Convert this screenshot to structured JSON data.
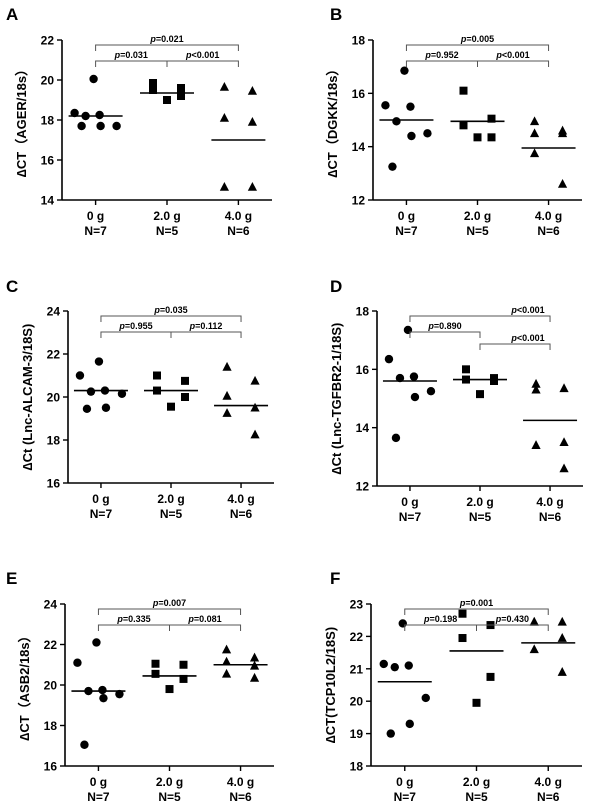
{
  "figure": {
    "description_panels": 6
  },
  "chart_data": [
    {
      "panel": "A",
      "type": "scatter",
      "ylabel": "∆CT（AGER/18s）",
      "ylim": [
        14,
        22
      ],
      "yticks": [
        14,
        16,
        18,
        20,
        22
      ],
      "ytick_labels": [
        "14",
        "16",
        "18",
        "20",
        "22"
      ],
      "groups": [
        {
          "dose": "0 g",
          "n": "N=7",
          "marker": "circle",
          "mean": 18.2,
          "values": [
            20.05,
            18.35,
            18.25,
            18.2,
            17.7,
            17.7,
            17.7
          ]
        },
        {
          "dose": "2.0 g",
          "n": "N=5",
          "marker": "square",
          "mean": 19.35,
          "values": [
            19.85,
            19.6,
            19.5,
            19.2,
            19.0
          ]
        },
        {
          "dose": "4.0 g",
          "n": "N=6",
          "marker": "triangle",
          "mean": 17.0,
          "values": [
            19.65,
            19.45,
            18.1,
            17.9,
            14.65,
            14.65
          ]
        }
      ],
      "comparisons": [
        {
          "from": 0,
          "to": 2,
          "label": "p=0.021",
          "level": 2
        },
        {
          "from": 0,
          "to": 1,
          "label": "p=0.031",
          "level": 1
        },
        {
          "from": 1,
          "to": 2,
          "label": "p<0.001",
          "level": 1
        }
      ]
    },
    {
      "panel": "B",
      "type": "scatter",
      "ylabel": "∆CT（DGKK/18s）",
      "ylim": [
        12,
        18
      ],
      "yticks": [
        12,
        14,
        16,
        18
      ],
      "ytick_labels": [
        "12",
        "14",
        "16",
        "18"
      ],
      "groups": [
        {
          "dose": "0 g",
          "n": "N=7",
          "marker": "circle",
          "mean": 15.0,
          "values": [
            16.85,
            15.55,
            15.5,
            14.95,
            14.5,
            14.4,
            13.25
          ]
        },
        {
          "dose": "2.0 g",
          "n": "N=5",
          "marker": "square",
          "mean": 14.95,
          "values": [
            16.1,
            15.05,
            14.8,
            14.35,
            14.35
          ]
        },
        {
          "dose": "4.0 g",
          "n": "N=6",
          "marker": "triangle",
          "mean": 13.95,
          "values": [
            14.95,
            14.6,
            14.5,
            14.5,
            13.75,
            12.6
          ]
        }
      ],
      "comparisons": [
        {
          "from": 0,
          "to": 2,
          "label": "p=0.005",
          "level": 2
        },
        {
          "from": 0,
          "to": 1,
          "label": "p=0.952",
          "level": 1
        },
        {
          "from": 1,
          "to": 2,
          "label": "p<0.001",
          "level": 1
        }
      ]
    },
    {
      "panel": "C",
      "type": "scatter",
      "ylabel": "∆Ct (Lnc-ALCAM-3/18S)",
      "ylim": [
        16,
        24
      ],
      "yticks": [
        16,
        18,
        20,
        22,
        24
      ],
      "ytick_labels": [
        "16",
        "18",
        "20",
        "22",
        "24"
      ],
      "groups": [
        {
          "dose": "0 g",
          "n": "N=7",
          "marker": "circle",
          "mean": 20.3,
          "values": [
            21.65,
            21.0,
            20.3,
            20.25,
            20.15,
            19.5,
            19.45
          ]
        },
        {
          "dose": "2.0 g",
          "n": "N=5",
          "marker": "square",
          "mean": 20.3,
          "values": [
            21.0,
            20.75,
            20.3,
            20.0,
            19.55
          ]
        },
        {
          "dose": "4.0 g",
          "n": "N=6",
          "marker": "triangle",
          "mean": 19.6,
          "values": [
            21.4,
            20.75,
            20.05,
            19.5,
            19.25,
            18.25
          ]
        }
      ],
      "comparisons": [
        {
          "from": 0,
          "to": 2,
          "label": "p=0.035",
          "level": 2
        },
        {
          "from": 0,
          "to": 1,
          "label": "p=0.955",
          "level": 1
        },
        {
          "from": 1,
          "to": 2,
          "label": "p=0.112",
          "level": 1
        }
      ]
    },
    {
      "panel": "D",
      "type": "scatter",
      "ylabel": "∆Ct (Lnc-TGFBR2-1/18S)",
      "ylim": [
        12,
        18
      ],
      "yticks": [
        12,
        14,
        16,
        18
      ],
      "ytick_labels": [
        "12",
        "14",
        "16",
        "18"
      ],
      "groups": [
        {
          "dose": "0 g",
          "n": "N=7",
          "marker": "circle",
          "mean": 15.6,
          "values": [
            17.35,
            16.35,
            15.75,
            15.7,
            15.25,
            15.05,
            13.65
          ]
        },
        {
          "dose": "2.0 g",
          "n": "N=5",
          "marker": "square",
          "mean": 15.65,
          "values": [
            16.0,
            15.7,
            15.65,
            15.6,
            15.15
          ]
        },
        {
          "dose": "4.0 g",
          "n": "N=6",
          "marker": "triangle",
          "mean": 14.25,
          "values": [
            15.5,
            15.35,
            15.3,
            13.5,
            13.4,
            12.6
          ]
        }
      ],
      "comparisons": [
        {
          "from": 0,
          "to": 2,
          "label": "p<0.001",
          "level": 2,
          "label_near": "end"
        },
        {
          "from": 0,
          "to": 1,
          "label": "p=0.890",
          "level": 1
        },
        {
          "from": 1,
          "to": 2,
          "label": "p<0.001",
          "level": 0,
          "label_near": "end"
        }
      ]
    },
    {
      "panel": "E",
      "type": "scatter",
      "ylabel": "∆CT（ASB2/18s）",
      "ylim": [
        16,
        24
      ],
      "yticks": [
        16,
        18,
        20,
        22,
        24
      ],
      "ytick_labels": [
        "16",
        "18",
        "20",
        "22",
        "24"
      ],
      "groups": [
        {
          "dose": "0 g",
          "n": "N=7",
          "marker": "circle",
          "mean": 19.7,
          "values": [
            22.1,
            21.1,
            19.75,
            19.7,
            19.55,
            19.35,
            17.05
          ]
        },
        {
          "dose": "2.0 g",
          "n": "N=5",
          "marker": "square",
          "mean": 20.45,
          "values": [
            21.05,
            21.0,
            20.55,
            20.3,
            19.8
          ]
        },
        {
          "dose": "4.0 g",
          "n": "N=6",
          "marker": "triangle",
          "mean": 21.0,
          "values": [
            21.75,
            21.35,
            21.15,
            20.95,
            20.55,
            20.35
          ]
        }
      ],
      "comparisons": [
        {
          "from": 0,
          "to": 2,
          "label": "p=0.007",
          "level": 2
        },
        {
          "from": 0,
          "to": 1,
          "label": "p=0.335",
          "level": 1
        },
        {
          "from": 1,
          "to": 2,
          "label": "p=0.081",
          "level": 1
        }
      ]
    },
    {
      "panel": "F",
      "type": "scatter",
      "ylabel": "∆CT(TCP10L2/18S)",
      "ylim": [
        18,
        23
      ],
      "yticks": [
        18,
        19,
        20,
        21,
        22,
        23
      ],
      "ytick_labels": [
        "18",
        "19",
        "20",
        "21",
        "22",
        "23"
      ],
      "groups": [
        {
          "dose": "0 g",
          "n": "N=7",
          "marker": "circle",
          "mean": 20.6,
          "values": [
            22.4,
            21.15,
            21.1,
            21.05,
            20.1,
            19.3,
            19.0
          ]
        },
        {
          "dose": "2.0 g",
          "n": "N=5",
          "marker": "square",
          "mean": 21.55,
          "values": [
            22.7,
            22.35,
            21.95,
            20.75,
            19.95
          ]
        },
        {
          "dose": "4.0 g",
          "n": "N=6",
          "marker": "triangle",
          "mean": 21.8,
          "values": [
            22.45,
            22.45,
            22.45,
            21.95,
            21.6,
            20.9
          ]
        }
      ],
      "comparisons": [
        {
          "from": 0,
          "to": 2,
          "label": "p=0.001",
          "level": 2
        },
        {
          "from": 0,
          "to": 1,
          "label": "p=0.198",
          "level": 1
        },
        {
          "from": 1,
          "to": 2,
          "label": "p=0.430",
          "level": 1
        }
      ]
    }
  ]
}
